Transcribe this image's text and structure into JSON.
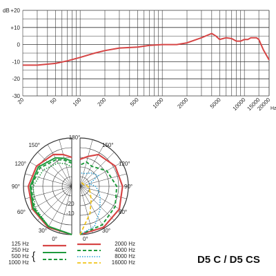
{
  "model_label": "D5 C / D5 CS",
  "colors": {
    "125": "#d64545",
    "250": "#1e9a3c",
    "500": "#1e9a3c",
    "1000": "#1e9a3c",
    "2000": "#d64545",
    "4000": "#1e9a3c",
    "8000": "#2a9fd6",
    "16000": "#f0c419",
    "grid": "#333333",
    "response": "#d64545"
  },
  "chart_data": [
    {
      "type": "line",
      "title": "",
      "xlabel": "Hz",
      "ylabel": "dB",
      "xscale": "log",
      "xlim": [
        20,
        20000
      ],
      "ylim": [
        -30,
        20
      ],
      "grid": true,
      "y_ticks": [
        "+20",
        "+10",
        "0",
        "-10",
        "-20",
        "-30"
      ],
      "x_ticks": [
        20,
        50,
        100,
        200,
        500,
        1000,
        2000,
        5000,
        10000,
        15000,
        20000
      ],
      "series": [
        {
          "x": [
            20,
            30,
            50,
            70,
            100,
            150,
            200,
            300,
            500,
            700,
            1000,
            1500,
            2000,
            3000,
            4000,
            4500,
            5000,
            5500,
            6000,
            7000,
            8000,
            9000,
            10000,
            11000,
            12000,
            13000,
            14000,
            15000,
            17000,
            20000
          ],
          "y": [
            -12,
            -12,
            -11,
            -9.5,
            -7.5,
            -5,
            -3.5,
            -2,
            -1.5,
            -0.5,
            0,
            0,
            1,
            4,
            6.5,
            5,
            3,
            3.5,
            4,
            3.5,
            2,
            2,
            3,
            3,
            4,
            4,
            4,
            3,
            -3,
            -9
          ]
        }
      ]
    },
    {
      "type": "polar",
      "title": "",
      "angle_labels": [
        "180°",
        "150°",
        "120°",
        "90°",
        "60°",
        "30°",
        "0°",
        "150°",
        "120°",
        "90°",
        "60°",
        "30°",
        "0°"
      ],
      "radial_labels": [
        "-20",
        "-10"
      ],
      "radial_range_db": [
        -25,
        0
      ],
      "legend_left": [
        "125 Hz",
        "250 Hz",
        "500 Hz",
        "1000 Hz"
      ],
      "legend_right": [
        "2000 Hz",
        "4000 Hz",
        "8000 Hz",
        "16000 Hz"
      ],
      "series": [
        {
          "name": "125 Hz",
          "side": "left",
          "angles_deg": [
            0,
            30,
            60,
            90,
            120,
            150,
            165,
            180
          ],
          "db": [
            0,
            -0.5,
            -1.5,
            -2.5,
            -4,
            -6,
            -8,
            -10
          ]
        },
        {
          "name": "250 Hz",
          "side": "left",
          "angles_deg": [
            0,
            30,
            60,
            90,
            120,
            150,
            165,
            180
          ],
          "db": [
            0,
            -1,
            -2,
            -3.5,
            -5,
            -8,
            -10,
            -12
          ]
        },
        {
          "name": "500 Hz",
          "side": "left",
          "angles_deg": [
            0,
            30,
            60,
            90,
            120,
            150,
            165,
            180
          ],
          "db": [
            0,
            -1,
            -2.5,
            -4,
            -6,
            -9,
            -11,
            -13
          ]
        },
        {
          "name": "1000 Hz",
          "side": "left",
          "angles_deg": [
            0,
            30,
            60,
            90,
            120,
            150,
            165,
            180
          ],
          "db": [
            0,
            -1,
            -3,
            -5,
            -8,
            -11,
            -13,
            -15
          ]
        },
        {
          "name": "2000 Hz",
          "side": "right",
          "angles_deg": [
            0,
            30,
            60,
            90,
            120,
            150,
            165,
            180
          ],
          "db": [
            0,
            -0.5,
            -1.5,
            -3,
            -4,
            -6,
            -9,
            -11
          ]
        },
        {
          "name": "4000 Hz",
          "side": "right",
          "angles_deg": [
            0,
            30,
            60,
            90,
            120,
            150,
            165,
            180
          ],
          "db": [
            0,
            -2,
            -4,
            -6,
            -9,
            -13,
            -12,
            -14
          ]
        },
        {
          "name": "8000 Hz",
          "side": "right",
          "angles_deg": [
            0,
            20,
            40,
            60,
            75,
            90,
            105,
            120,
            140,
            160,
            180
          ],
          "db": [
            0,
            -3,
            -9,
            -13,
            -15,
            -17,
            -20,
            -14,
            -16,
            -18,
            -18
          ]
        },
        {
          "name": "16000 Hz",
          "side": "right",
          "angles_deg": [
            0,
            20,
            40,
            60,
            75,
            90,
            105,
            120,
            140,
            160,
            180
          ],
          "db": [
            0,
            -10,
            -16,
            -19,
            -20,
            -21,
            -22,
            -23,
            -23,
            -23,
            -23
          ]
        }
      ]
    }
  ]
}
